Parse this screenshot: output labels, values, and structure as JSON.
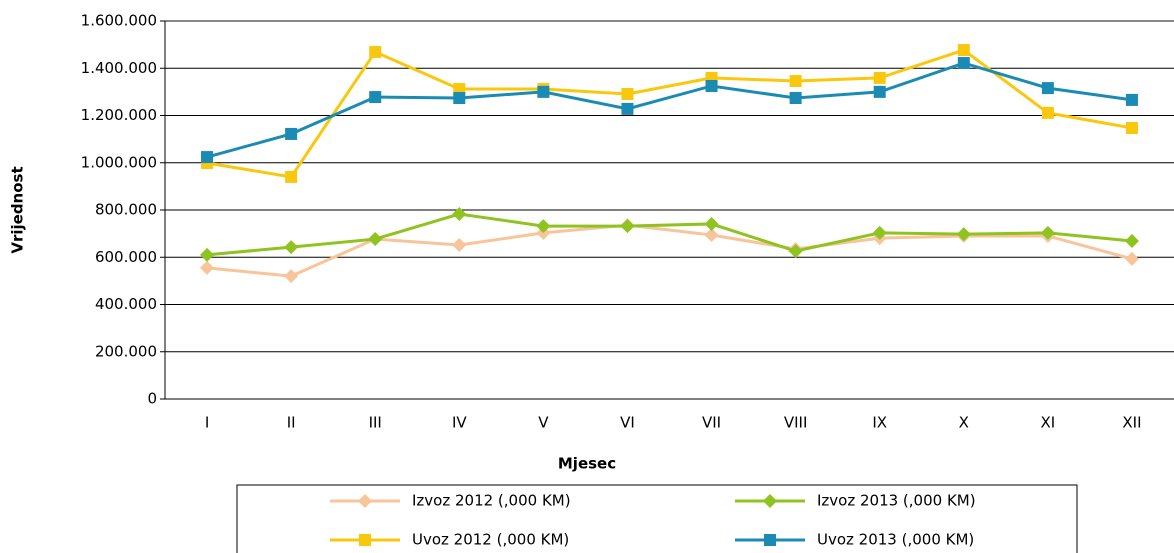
{
  "chart_data": {
    "type": "line",
    "x_label": "Mjesec",
    "y_label": "Vrijednost",
    "categories": [
      "I",
      "II",
      "III",
      "IV",
      "V",
      "VI",
      "VII",
      "VIII",
      "IX",
      "X",
      "XI",
      "XII"
    ],
    "series": [
      {
        "name": "Izvoz 2012 (,000 KM)",
        "color": "#f8c49a",
        "marker": "diamond",
        "values": [
          555000,
          520000,
          677000,
          652000,
          703000,
          736000,
          694000,
          635000,
          681000,
          690000,
          690000,
          593000
        ]
      },
      {
        "name": "Izvoz 2013 (,000 KM)",
        "color": "#8fc31f",
        "marker": "diamond",
        "values": [
          610000,
          643000,
          677000,
          783000,
          732000,
          732000,
          741000,
          626000,
          703000,
          698000,
          703000,
          669000
        ]
      },
      {
        "name": "Uvoz 2012 (,000 KM)",
        "color": "#f9c80e",
        "marker": "square",
        "values": [
          999000,
          940000,
          1469000,
          1312000,
          1312000,
          1291000,
          1359000,
          1346000,
          1359000,
          1477000,
          1211000,
          1147000
        ]
      },
      {
        "name": "Uvoz 2013 (,000 KM)",
        "color": "#1b8bb4",
        "marker": "square",
        "values": [
          1024000,
          1122000,
          1278000,
          1274000,
          1300000,
          1228000,
          1325000,
          1274000,
          1300000,
          1422000,
          1316000,
          1266000
        ]
      }
    ],
    "ylim": [
      0,
      1600000
    ],
    "yticks": [
      0,
      {
        "value": 200000,
        "label": "200.000"
      },
      {
        "value": 400000,
        "label": "400.000"
      },
      {
        "value": 600000,
        "label": "600.000"
      },
      {
        "value": 800000,
        "label": "800.000"
      },
      {
        "value": 1000000,
        "label": "1.000.000"
      },
      {
        "value": 1200000,
        "label": "1.200.000"
      },
      {
        "value": 1400000,
        "label": "1.400.000"
      },
      {
        "value": 1600000,
        "label": "1.600.000"
      }
    ],
    "grid": true,
    "legend": "bottom"
  }
}
